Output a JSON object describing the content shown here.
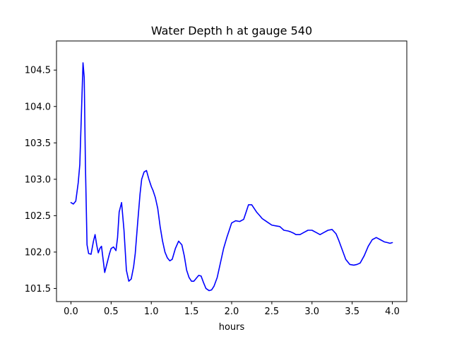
{
  "chart_data": {
    "type": "line",
    "title": "Water Depth h at gauge 540",
    "xlabel": "hours",
    "ylabel": "",
    "xlim": [
      -0.18,
      4.18
    ],
    "ylim": [
      101.32,
      104.9
    ],
    "grid": false,
    "x_ticks": [
      0.0,
      0.5,
      1.0,
      1.5,
      2.0,
      2.5,
      3.0,
      3.5,
      4.0
    ],
    "x_tick_labels": [
      "0.0",
      "0.5",
      "1.0",
      "1.5",
      "2.0",
      "2.5",
      "3.0",
      "3.5",
      "4.0"
    ],
    "y_ticks": [
      101.5,
      102.0,
      102.5,
      103.0,
      103.5,
      104.0,
      104.5
    ],
    "y_tick_labels": [
      "101.5",
      "102.0",
      "102.5",
      "103.0",
      "103.5",
      "104.0",
      "104.5"
    ],
    "colors": {
      "line": "#0000ff",
      "axes": "#000000",
      "background": "#ffffff"
    },
    "series": [
      {
        "name": "",
        "x": [
          0.0,
          0.03,
          0.06,
          0.09,
          0.11,
          0.13,
          0.15,
          0.165,
          0.18,
          0.2,
          0.22,
          0.25,
          0.28,
          0.3,
          0.32,
          0.34,
          0.36,
          0.38,
          0.4,
          0.42,
          0.45,
          0.48,
          0.5,
          0.53,
          0.56,
          0.58,
          0.6,
          0.63,
          0.66,
          0.69,
          0.72,
          0.75,
          0.78,
          0.8,
          0.83,
          0.86,
          0.88,
          0.91,
          0.94,
          0.97,
          1.0,
          1.02,
          1.05,
          1.08,
          1.11,
          1.14,
          1.17,
          1.2,
          1.23,
          1.26,
          1.3,
          1.34,
          1.38,
          1.41,
          1.44,
          1.47,
          1.5,
          1.53,
          1.56,
          1.59,
          1.62,
          1.65,
          1.68,
          1.72,
          1.75,
          1.78,
          1.82,
          1.86,
          1.9,
          1.94,
          1.97,
          2.0,
          2.05,
          2.1,
          2.15,
          2.18,
          2.21,
          2.25,
          2.28,
          2.31,
          2.35,
          2.38,
          2.42,
          2.46,
          2.5,
          2.55,
          2.6,
          2.65,
          2.7,
          2.73,
          2.77,
          2.8,
          2.85,
          2.9,
          2.95,
          3.0,
          3.05,
          3.1,
          3.15,
          3.2,
          3.25,
          3.3,
          3.33,
          3.37,
          3.42,
          3.47,
          3.52,
          3.56,
          3.6,
          3.65,
          3.7,
          3.75,
          3.8,
          3.85,
          3.9,
          3.94,
          3.97,
          4.0
        ],
        "values": [
          102.68,
          102.66,
          102.7,
          102.95,
          103.2,
          103.9,
          104.6,
          104.4,
          103.2,
          102.1,
          101.98,
          101.97,
          102.15,
          102.24,
          102.1,
          101.99,
          102.05,
          102.08,
          101.9,
          101.72,
          101.85,
          101.98,
          102.05,
          102.07,
          102.02,
          102.2,
          102.55,
          102.68,
          102.3,
          101.75,
          101.6,
          101.63,
          101.8,
          101.98,
          102.4,
          102.8,
          103.0,
          103.1,
          103.12,
          103.0,
          102.9,
          102.85,
          102.75,
          102.6,
          102.35,
          102.15,
          102.0,
          101.92,
          101.88,
          101.9,
          102.05,
          102.15,
          102.1,
          101.95,
          101.75,
          101.65,
          101.6,
          101.6,
          101.64,
          101.68,
          101.67,
          101.58,
          101.5,
          101.47,
          101.48,
          101.53,
          101.65,
          101.85,
          102.05,
          102.2,
          102.3,
          102.4,
          102.43,
          102.42,
          102.45,
          102.55,
          102.65,
          102.65,
          102.6,
          102.55,
          102.5,
          102.46,
          102.43,
          102.4,
          102.37,
          102.36,
          102.35,
          102.3,
          102.29,
          102.28,
          102.26,
          102.24,
          102.24,
          102.27,
          102.3,
          102.3,
          102.27,
          102.24,
          102.27,
          102.3,
          102.31,
          102.25,
          102.17,
          102.05,
          101.9,
          101.83,
          101.82,
          101.83,
          101.85,
          101.95,
          102.08,
          102.17,
          102.2,
          102.17,
          102.14,
          102.13,
          102.12,
          102.13
        ]
      }
    ]
  }
}
